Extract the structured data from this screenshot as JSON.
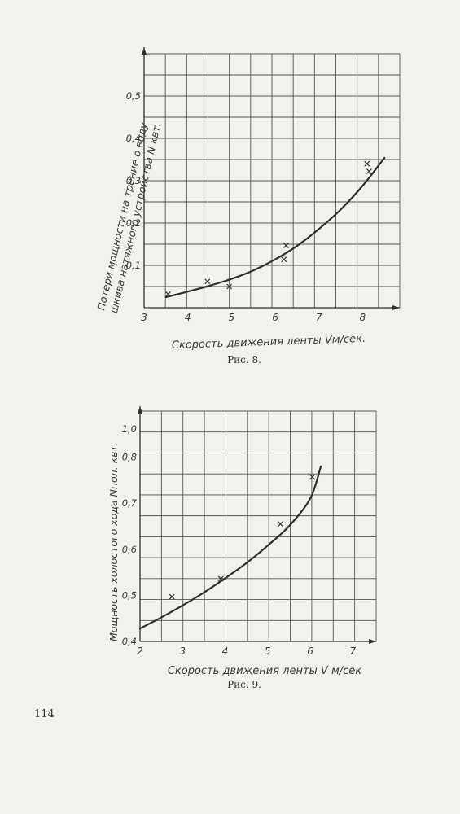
{
  "page": {
    "page_number": "114"
  },
  "colors": {
    "paper": "#f3f1ec",
    "ink": "#2f2f2f",
    "grid": "#555555"
  },
  "chart_data": [
    {
      "type": "line",
      "caption": "Рис. 8.",
      "xlabel": "Скорость движения ленты Vм/сек.",
      "ylabel": "Потери мощности на трение о воду шкива натяжного устройства N квт.",
      "ylabel_line1": "Потери мощности на трение о воду",
      "ylabel_line2": "шкива натяжного устройства N квт.",
      "x_ticks": [
        "3",
        "4",
        "5",
        "6",
        "7",
        "8"
      ],
      "y_ticks": [
        "0,1",
        "0,2",
        "0,3",
        "0,4",
        "0,5"
      ],
      "xlim": [
        3,
        8.85
      ],
      "ylim": [
        0,
        0.6
      ],
      "grid": true,
      "series": [
        {
          "x": [
            3.5,
            4.0,
            4.5,
            5.0,
            5.5,
            6.0,
            6.5,
            7.0,
            7.5,
            8.0,
            8.5
          ],
          "values": [
            0.025,
            0.038,
            0.052,
            0.068,
            0.088,
            0.114,
            0.146,
            0.186,
            0.232,
            0.288,
            0.354
          ]
        }
      ],
      "points": {
        "x": [
          3.55,
          4.45,
          4.95,
          6.2,
          6.25,
          8.1,
          8.15
        ],
        "y": [
          0.032,
          0.062,
          0.05,
          0.114,
          0.147,
          0.34,
          0.322
        ]
      }
    },
    {
      "type": "line",
      "caption": "Рис. 9.",
      "xlabel": "Скорость движения ленты V м/сек",
      "ylabel": "Мощность холостого хода Nпол. квт.",
      "x_ticks": [
        "2",
        "3",
        "4",
        "5",
        "6",
        "7"
      ],
      "y_ticks": [
        "0,4",
        "0,5",
        "0,6",
        "0,7",
        "0,8",
        "1,0"
      ],
      "xlim": [
        2,
        7.55
      ],
      "ylim": [
        0.4,
        0.9
      ],
      "grid": true,
      "series": [
        {
          "x": [
            2.0,
            2.5,
            3.0,
            3.5,
            4.0,
            4.5,
            5.0,
            5.5,
            6.0,
            6.25
          ],
          "values": [
            0.428,
            0.452,
            0.478,
            0.506,
            0.537,
            0.57,
            0.608,
            0.65,
            0.71,
            0.78
          ]
        }
      ],
      "points": {
        "x": [
          2.75,
          3.9,
          5.3,
          6.05
        ],
        "y": [
          0.497,
          0.536,
          0.655,
          0.757
        ]
      }
    }
  ]
}
